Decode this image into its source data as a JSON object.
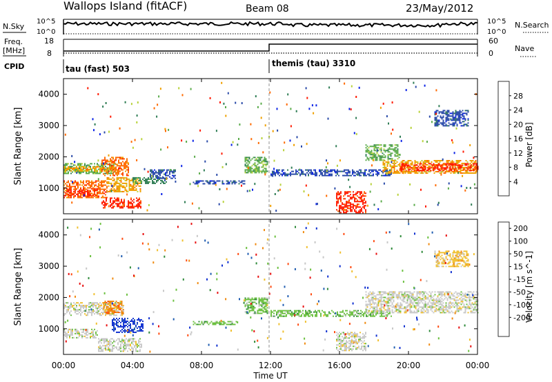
{
  "header": {
    "station": "Wallops Island (fitACF)",
    "beam": "Beam 08",
    "date": "23/May/2012"
  },
  "nsky_panel": {
    "left_label": "N.Sky",
    "right_label": "N.Search",
    "left_ticks": [
      "10^5",
      "10^0"
    ],
    "right_ticks": [
      "10^5",
      "10^0"
    ]
  },
  "freq_panel": {
    "left_label_1": "Freq.",
    "left_label_2": "[MHz]",
    "right_label": "Nave",
    "left_ticks": [
      "18",
      "8"
    ],
    "right_ticks": [
      "60",
      "0"
    ]
  },
  "cpid": {
    "label": "CPID",
    "modes": [
      {
        "text": "tau (fast) 503",
        "start_hour": 0
      },
      {
        "text": "themis (tau) 3310",
        "start_hour": 12
      }
    ]
  },
  "x_axis": {
    "label": "Time UT",
    "ticks": [
      "00:00",
      "04:00",
      "08:00",
      "12:00",
      "16:00",
      "20:00",
      "00:00"
    ]
  },
  "power_panel": {
    "ylabel": "Slant Range [km]",
    "yticks": [
      "1000",
      "2000",
      "3000",
      "4000"
    ],
    "colorbar_label": "Power [dB]",
    "colorbar_ticks": [
      "4",
      "8",
      "12",
      "16",
      "20",
      "24",
      "28"
    ],
    "colors": [
      "#0a22e6",
      "#2a4aa8",
      "#2f7d55",
      "#5aab4a",
      "#b8d23a",
      "#f0a000",
      "#ff6a00",
      "#ff1a00"
    ]
  },
  "velocity_panel": {
    "ylabel": "Slant Range [km]",
    "yticks": [
      "1000",
      "2000",
      "3000",
      "4000"
    ],
    "colorbar_label": "Velocity [m s^-1]",
    "colorbar_ticks": [
      "200",
      "100",
      "50",
      "15",
      "-15",
      "-50",
      "-100",
      "-200"
    ],
    "colors": [
      "#1030d0",
      "#1f5cb0",
      "#2f8a3a",
      "#6cc040",
      "#c8c8c8",
      "#f0c030",
      "#f08a10",
      "#ff4a10",
      "#e81010"
    ]
  },
  "chart_data": {
    "type": "heatmap",
    "x_range_hours": [
      0,
      24
    ],
    "y_range_km": [
      180,
      4500
    ],
    "power_bands": [
      {
        "t0": 0.0,
        "t1": 3.0,
        "r0": 1450,
        "r1": 1800,
        "level": 3
      },
      {
        "t0": 0.0,
        "t1": 3.0,
        "r0": 1550,
        "r1": 1700,
        "level": 5
      },
      {
        "t0": 0.0,
        "t1": 2.5,
        "r0": 700,
        "r1": 1250,
        "level": 6
      },
      {
        "t0": 0.0,
        "t1": 2.0,
        "r0": 750,
        "r1": 1000,
        "level": 7
      },
      {
        "t0": 2.2,
        "t1": 4.5,
        "r0": 350,
        "r1": 700,
        "level": 7
      },
      {
        "t0": 2.5,
        "t1": 4.5,
        "r0": 900,
        "r1": 1350,
        "level": 5
      },
      {
        "t0": 2.2,
        "t1": 3.8,
        "r0": 1400,
        "r1": 2000,
        "level": 6
      },
      {
        "t0": 4.0,
        "t1": 6.0,
        "r0": 1150,
        "r1": 1350,
        "level": 2
      },
      {
        "t0": 5.0,
        "t1": 6.5,
        "r0": 1300,
        "r1": 1600,
        "level": 1
      },
      {
        "t0": 7.5,
        "t1": 10.5,
        "r0": 1150,
        "r1": 1250,
        "level": 1
      },
      {
        "t0": 10.5,
        "t1": 11.8,
        "r0": 1500,
        "r1": 2000,
        "level": 3
      },
      {
        "t0": 12.0,
        "t1": 19.0,
        "r0": 1400,
        "r1": 1600,
        "level": 1
      },
      {
        "t0": 15.8,
        "t1": 17.5,
        "r0": 200,
        "r1": 900,
        "level": 7
      },
      {
        "t0": 17.5,
        "t1": 19.5,
        "r0": 1900,
        "r1": 2400,
        "level": 3
      },
      {
        "t0": 18.5,
        "t1": 24.0,
        "r0": 1500,
        "r1": 1900,
        "level": 5
      },
      {
        "t0": 19.5,
        "t1": 24.0,
        "r0": 1550,
        "r1": 1800,
        "level": 7
      },
      {
        "t0": 21.5,
        "t1": 23.5,
        "r0": 3000,
        "r1": 3500,
        "level": 1
      }
    ],
    "velocity_bands": [
      {
        "t0": 0.0,
        "t1": 3.5,
        "r0": 1450,
        "r1": 1850,
        "level": 4
      },
      {
        "t0": 0.0,
        "t1": 2.0,
        "r0": 700,
        "r1": 1000,
        "level": 4
      },
      {
        "t0": 2.0,
        "t1": 4.5,
        "r0": 300,
        "r1": 700,
        "level": 4
      },
      {
        "t0": 2.3,
        "t1": 3.5,
        "r0": 1500,
        "r1": 1900,
        "level": 6
      },
      {
        "t0": 2.8,
        "t1": 4.6,
        "r0": 900,
        "r1": 1350,
        "level": 0
      },
      {
        "t0": 7.5,
        "t1": 10.0,
        "r0": 1150,
        "r1": 1250,
        "level": 3
      },
      {
        "t0": 10.5,
        "t1": 11.8,
        "r0": 1500,
        "r1": 2000,
        "level": 3
      },
      {
        "t0": 12.0,
        "t1": 19.0,
        "r0": 1400,
        "r1": 1600,
        "level": 3
      },
      {
        "t0": 15.8,
        "t1": 17.5,
        "r0": 300,
        "r1": 900,
        "level": 4
      },
      {
        "t0": 17.5,
        "t1": 24.0,
        "r0": 1500,
        "r1": 2200,
        "level": 4
      },
      {
        "t0": 21.5,
        "t1": 23.5,
        "r0": 3000,
        "r1": 3500,
        "level": 5
      }
    ]
  }
}
